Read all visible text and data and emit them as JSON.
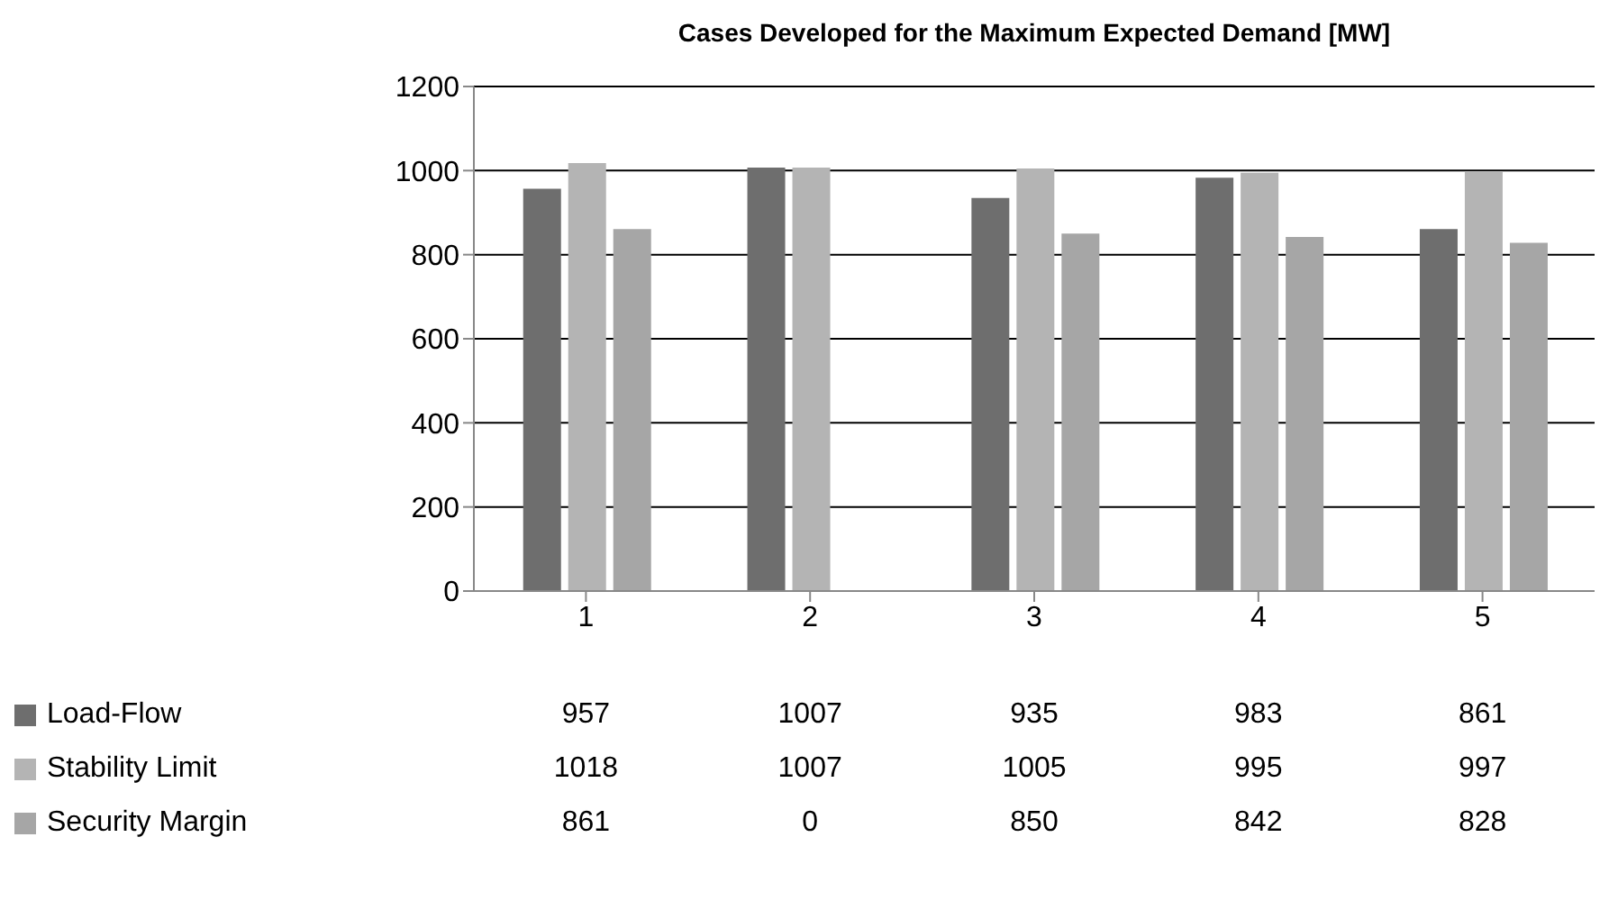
{
  "chart_data": {
    "type": "bar",
    "title": "Cases Developed for the Maximum Expected Demand [MW]",
    "categories": [
      "1",
      "2",
      "3",
      "4",
      "5"
    ],
    "series": [
      {
        "name": "Load-Flow",
        "color": "#6e6e6e",
        "values": [
          957,
          1007,
          935,
          983,
          861
        ]
      },
      {
        "name": "Stability Limit",
        "color": "#b4b4b4",
        "values": [
          1018,
          1007,
          1005,
          995,
          997
        ]
      },
      {
        "name": "Security Margin",
        "color": "#a6a6a6",
        "values": [
          861,
          0,
          850,
          842,
          828
        ]
      }
    ],
    "ylim": [
      0,
      1200
    ],
    "yticks": [
      0,
      200,
      400,
      600,
      800,
      1000,
      1200
    ],
    "grid": "y",
    "legend": "bottom",
    "data_labels": true
  }
}
